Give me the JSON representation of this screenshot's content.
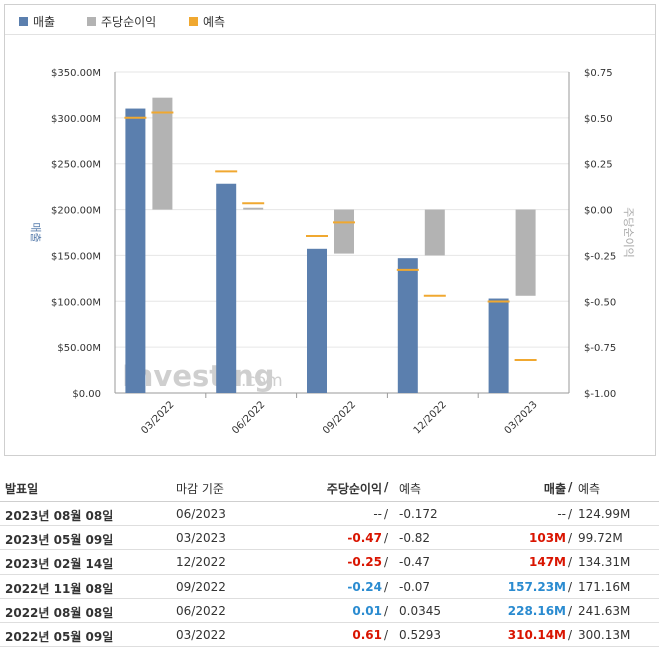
{
  "legend": {
    "revenue": "매출",
    "eps": "주당순이익",
    "forecast": "예측"
  },
  "colors": {
    "revenue": "#5b7fae",
    "eps": "#b3b3b3",
    "forecast": "#f0a830",
    "positive": "#2a8bd0",
    "negative": "#d91400"
  },
  "watermark": {
    "main": "Investing",
    "suffix": ".com"
  },
  "chart_data": {
    "type": "bar",
    "categories": [
      "03/2022",
      "06/2022",
      "09/2022",
      "12/2022",
      "03/2023"
    ],
    "series": [
      {
        "name": "매출",
        "axis": "left",
        "values": [
          310.14,
          228.16,
          157.23,
          147,
          103
        ]
      },
      {
        "name": "주당순이익",
        "axis": "right",
        "values": [
          0.61,
          0.01,
          -0.24,
          -0.25,
          -0.47
        ]
      }
    ],
    "forecasts": {
      "revenue": [
        300.13,
        241.63,
        171.16,
        134.31,
        99.72
      ],
      "eps": [
        0.5293,
        0.0345,
        -0.07,
        -0.47,
        -0.82
      ]
    },
    "left_axis": {
      "label": "매출",
      "ylim": [
        0,
        350
      ],
      "ticks": [
        "$0.00",
        "$50.00M",
        "$100.00M",
        "$150.00M",
        "$200.00M",
        "$250.00M",
        "$300.00M",
        "$350.00M"
      ]
    },
    "right_axis": {
      "label": "주당순이익",
      "ylim": [
        -1.0,
        0.75
      ],
      "ticks": [
        "$-1.00",
        "$-0.75",
        "$-0.50",
        "$-0.25",
        "$0.00",
        "$0.25",
        "$0.50",
        "$0.75"
      ]
    },
    "grid": true,
    "legend_position": "top-left"
  },
  "table": {
    "headers": {
      "date": "발표일",
      "period": "마감 기준",
      "eps": "주당순이익",
      "slash": "/",
      "eps_forecast": "예측",
      "revenue": "매출",
      "revenue_forecast": "예측"
    },
    "rows": [
      {
        "date": "2023년 08월 08일",
        "period": "06/2023",
        "eps": "--",
        "eps_class": "plain",
        "eps_forecast": "-0.172",
        "revenue": "--",
        "revenue_class": "plain",
        "revenue_forecast": "124.99M"
      },
      {
        "date": "2023년 05월 09일",
        "period": "03/2023",
        "eps": "-0.47",
        "eps_class": "red",
        "eps_forecast": "-0.82",
        "revenue": "103M",
        "revenue_class": "red",
        "revenue_forecast": "99.72M"
      },
      {
        "date": "2023년 02월 14일",
        "period": "12/2022",
        "eps": "-0.25",
        "eps_class": "red",
        "eps_forecast": "-0.47",
        "revenue": "147M",
        "revenue_class": "red",
        "revenue_forecast": "134.31M"
      },
      {
        "date": "2022년 11월 08일",
        "period": "09/2022",
        "eps": "-0.24",
        "eps_class": "blue",
        "eps_forecast": "-0.07",
        "revenue": "157.23M",
        "revenue_class": "blue",
        "revenue_forecast": "171.16M"
      },
      {
        "date": "2022년 08월 08일",
        "period": "06/2022",
        "eps": "0.01",
        "eps_class": "blue",
        "eps_forecast": "0.0345",
        "revenue": "228.16M",
        "revenue_class": "blue",
        "revenue_forecast": "241.63M"
      },
      {
        "date": "2022년 05월 09일",
        "period": "03/2022",
        "eps": "0.61",
        "eps_class": "red",
        "eps_forecast": "0.5293",
        "revenue": "310.14M",
        "revenue_class": "red",
        "revenue_forecast": "300.13M"
      }
    ]
  }
}
